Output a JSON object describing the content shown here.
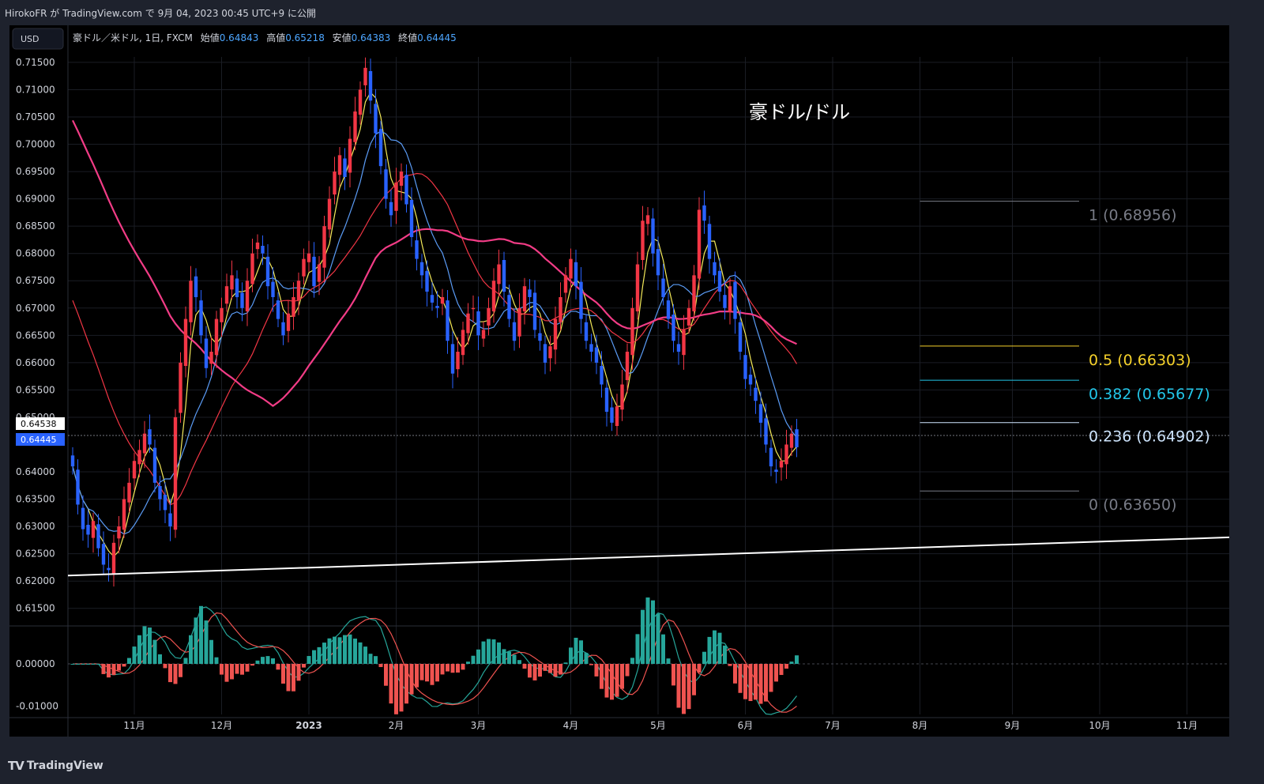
{
  "attribution": "HirokoFR が TradingView.com で 9月 04, 2023 00:45 UTC+9 に公開",
  "brand": "TradingView",
  "header": {
    "currency_button": "USD",
    "symbol": "豪ドル／米ドル, 1日, FXCM",
    "open_label": "始値",
    "open": "0.64843",
    "high_label": "高値",
    "high": "0.65218",
    "low_label": "安値",
    "low": "0.64383",
    "close_label": "終値",
    "close": "0.64445"
  },
  "chart_data": {
    "type": "candlestick",
    "title": "豪ドル/ドル",
    "ylim": [
      0.6125,
      0.716
    ],
    "y_ticks": [
      "0.71500",
      "0.71000",
      "0.70500",
      "0.70000",
      "0.69500",
      "0.69000",
      "0.68500",
      "0.68000",
      "0.67500",
      "0.67000",
      "0.66500",
      "0.66000",
      "0.65500",
      "0.65000",
      "0.64000",
      "0.63500",
      "0.63000",
      "0.62500",
      "0.62000",
      "0.61500"
    ],
    "x_ticks": [
      "11月",
      "12月",
      "2023",
      "2月",
      "3月",
      "4月",
      "5月",
      "6月",
      "7月",
      "8月",
      "9月",
      "10月",
      "11月"
    ],
    "x_tick_positions": [
      12,
      29,
      46,
      63,
      79,
      97,
      114,
      131,
      148,
      165,
      183,
      200,
      217
    ],
    "price_labels": {
      "crosshair": "0.64538",
      "last": "0.64445"
    },
    "colors": {
      "up": "#f23645",
      "down": "#2962ff",
      "ma_fast": "#f5eb5a",
      "ma_mid": "#5b9cf6",
      "ma_slow": "#f23645",
      "ma_long": "#f23c86",
      "trendline": "#ffffff"
    },
    "closes": [
      0.641,
      0.634,
      0.6295,
      0.6285,
      0.631,
      0.626,
      0.623,
      0.622,
      0.627,
      0.63,
      0.635,
      0.638,
      0.642,
      0.644,
      0.647,
      0.645,
      0.638,
      0.635,
      0.633,
      0.63,
      0.65,
      0.66,
      0.668,
      0.675,
      0.672,
      0.665,
      0.659,
      0.662,
      0.668,
      0.67,
      0.674,
      0.676,
      0.672,
      0.67,
      0.675,
      0.68,
      0.682,
      0.68,
      0.674,
      0.672,
      0.668,
      0.665,
      0.669,
      0.672,
      0.675,
      0.679,
      0.68,
      0.674,
      0.678,
      0.685,
      0.69,
      0.695,
      0.698,
      0.694,
      0.701,
      0.706,
      0.71,
      0.714,
      0.708,
      0.702,
      0.696,
      0.69,
      0.687,
      0.693,
      0.695,
      0.689,
      0.683,
      0.679,
      0.676,
      0.673,
      0.671,
      0.67,
      0.672,
      0.664,
      0.658,
      0.662,
      0.666,
      0.669,
      0.67,
      0.665,
      0.666,
      0.67,
      0.675,
      0.678,
      0.673,
      0.668,
      0.664,
      0.67,
      0.674,
      0.672,
      0.666,
      0.664,
      0.66,
      0.663,
      0.668,
      0.672,
      0.676,
      0.679,
      0.674,
      0.668,
      0.664,
      0.662,
      0.66,
      0.656,
      0.651,
      0.649,
      0.652,
      0.656,
      0.662,
      0.67,
      0.678,
      0.686,
      0.687,
      0.68,
      0.676,
      0.672,
      0.668,
      0.664,
      0.662,
      0.666,
      0.67,
      0.676,
      0.688,
      0.686,
      0.679,
      0.676,
      0.673,
      0.67,
      0.674,
      0.668,
      0.662,
      0.657,
      0.656,
      0.653,
      0.649,
      0.645,
      0.641,
      0.64,
      0.642,
      0.645,
      0.647,
      0.6445
    ],
    "fib_levels": [
      {
        "ratio": "1",
        "value": 0.68956,
        "label": "1 (0.68956)",
        "color": "#787b86"
      },
      {
        "ratio": "0.5",
        "value": 0.66303,
        "label": "0.5 (0.66303)",
        "color": "#f5d12b"
      },
      {
        "ratio": "0.382",
        "value": 0.65677,
        "label": "0.382 (0.65677)",
        "color": "#22c6e8"
      },
      {
        "ratio": "0.236",
        "value": 0.64902,
        "label": "0.236 (0.64902)",
        "color": "#cfe6ff"
      },
      {
        "ratio": "0",
        "value": 0.6365,
        "label": "0 (0.63650)",
        "color": "#787b86"
      }
    ],
    "trendline": {
      "from_value": 0.621,
      "to_value": 0.628
    },
    "macd": {
      "y_ticks": [
        "0.00000",
        "-0.01000"
      ],
      "ylim": [
        -0.012,
        0.0075
      ],
      "colors": {
        "hist_pos": "#26a69a",
        "hist_neg": "#ef5350",
        "macd_line": "#26a69a",
        "signal_line": "#ef5350"
      }
    }
  }
}
